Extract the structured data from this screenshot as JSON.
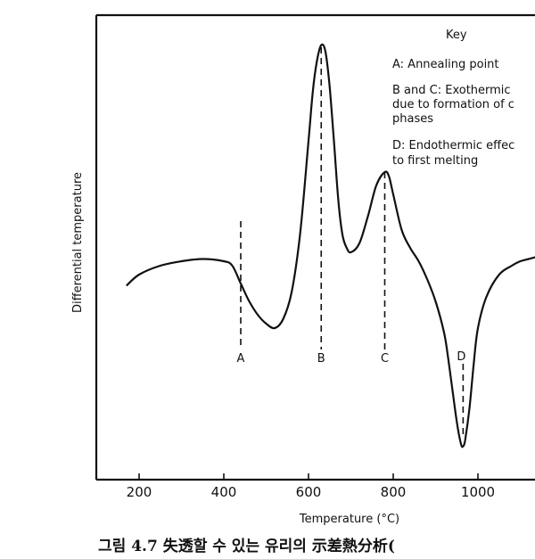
{
  "caption": "그림 4.7 失透할 수 있는 유리의 示差熱分析(",
  "chart_data": {
    "type": "line",
    "xlabel": "Temperature (°C)",
    "ylabel": "Differential temperature",
    "xlim": [
      100,
      1150
    ],
    "ylim": [
      0,
      1
    ],
    "x_ticks": [
      200,
      400,
      600,
      800,
      1000
    ],
    "x_tick_labels": [
      "200",
      "400",
      "600",
      "800",
      "1000"
    ],
    "y_ticks_labeled": false,
    "grid": false,
    "series": [
      {
        "x": [
          170,
          200,
          250,
          300,
          350,
          400,
          420,
          440,
          460,
          480,
          500,
          520,
          540,
          560,
          580,
          600,
          610,
          620,
          630,
          640,
          650,
          660,
          670,
          680,
          690,
          700,
          720,
          740,
          760,
          780,
          790,
          800,
          820,
          840,
          860,
          880,
          900,
          920,
          930,
          940,
          950,
          960,
          965,
          970,
          980,
          990,
          1000,
          1020,
          1050,
          1080,
          1100,
          1120,
          1140
        ],
        "y": [
          0.435,
          0.46,
          0.48,
          0.49,
          0.495,
          0.49,
          0.48,
          0.44,
          0.4,
          0.37,
          0.35,
          0.34,
          0.36,
          0.42,
          0.55,
          0.76,
          0.87,
          0.94,
          0.975,
          0.96,
          0.88,
          0.76,
          0.63,
          0.55,
          0.52,
          0.51,
          0.53,
          0.59,
          0.66,
          0.69,
          0.68,
          0.64,
          0.56,
          0.52,
          0.49,
          0.45,
          0.4,
          0.33,
          0.27,
          0.2,
          0.13,
          0.08,
          0.075,
          0.09,
          0.16,
          0.26,
          0.34,
          0.41,
          0.46,
          0.48,
          0.49,
          0.495,
          0.5
        ]
      }
    ],
    "markers": [
      {
        "label": "A",
        "x": 440,
        "y_top": 0.58
      },
      {
        "label": "B",
        "x": 630,
        "y_top": 0.97
      },
      {
        "label": "C",
        "x": 780,
        "y_top": 0.69
      },
      {
        "label": "D",
        "x": 965,
        "y_top": 0.16
      }
    ],
    "legend": {
      "title": "Key",
      "lines": [
        "A: Annealing point",
        "B and C: Exothermic",
        "due to formation of c",
        "phases",
        "D: Endothermic effec",
        "to first melting"
      ]
    }
  }
}
